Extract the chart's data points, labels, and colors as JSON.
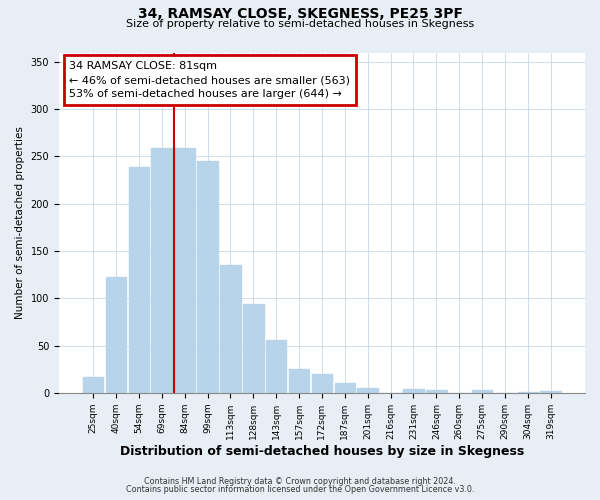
{
  "title": "34, RAMSAY CLOSE, SKEGNESS, PE25 3PF",
  "subtitle": "Size of property relative to semi-detached houses in Skegness",
  "xlabel": "Distribution of semi-detached houses by size in Skegness",
  "ylabel": "Number of semi-detached properties",
  "bar_labels": [
    "25sqm",
    "40sqm",
    "54sqm",
    "69sqm",
    "84sqm",
    "99sqm",
    "113sqm",
    "128sqm",
    "143sqm",
    "157sqm",
    "172sqm",
    "187sqm",
    "201sqm",
    "216sqm",
    "231sqm",
    "246sqm",
    "260sqm",
    "275sqm",
    "290sqm",
    "304sqm",
    "319sqm"
  ],
  "bar_values": [
    17,
    123,
    239,
    259,
    259,
    245,
    135,
    94,
    56,
    25,
    20,
    10,
    5,
    0,
    4,
    3,
    0,
    3,
    0,
    1,
    2
  ],
  "bar_color": "#b8d4ea",
  "marker_bar_index": 4,
  "marker_line_color": "#cc0000",
  "annotation_title": "34 RAMSAY CLOSE: 81sqm",
  "annotation_line1": "← 46% of semi-detached houses are smaller (563)",
  "annotation_line2": "53% of semi-detached houses are larger (644) →",
  "annotation_box_color": "#ffffff",
  "annotation_box_edge": "#cc0000",
  "ylim": [
    0,
    360
  ],
  "yticks": [
    0,
    50,
    100,
    150,
    200,
    250,
    300,
    350
  ],
  "footer1": "Contains HM Land Registry data © Crown copyright and database right 2024.",
  "footer2": "Contains public sector information licensed under the Open Government Licence v3.0.",
  "bg_color": "#e8eef5",
  "plot_bg_color": "#ffffff"
}
